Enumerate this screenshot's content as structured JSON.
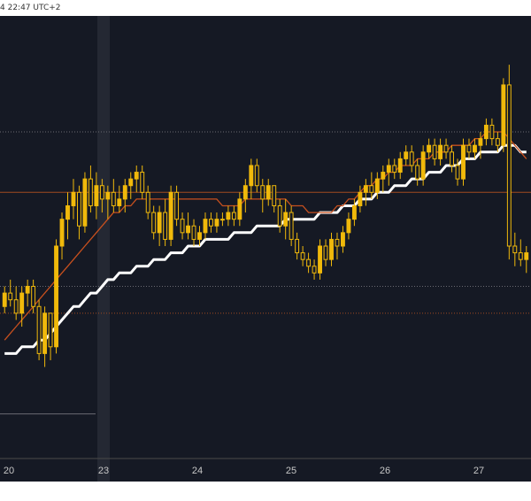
{
  "header": {
    "timestamp": "4 22:47 UTC+2"
  },
  "colors": {
    "background": "#151924",
    "candle": "#f0b90b",
    "ema_fast": "#c8501e",
    "ema_slow": "#ffffff",
    "session_highlight": "#242833",
    "price_line_orange": "#a04a20",
    "price_line_grey": "#6a6a72",
    "axis_text": "#c7c7c7"
  },
  "chart_data": {
    "type": "candlestick",
    "x_tick_labels": [
      "20",
      "23",
      "24",
      "25",
      "26",
      "27"
    ],
    "grid": false,
    "note_scale": "price axis not visible; values in relative units (0 = bottom, 100 = top of plot)",
    "ylim": [
      0,
      100
    ],
    "series": [
      {
        "kind": "candles",
        "ohlc": [
          [
            70,
            73,
            69,
            72
          ],
          [
            72,
            74,
            70,
            71
          ],
          [
            71,
            73,
            68,
            69
          ],
          [
            69,
            73,
            67,
            72
          ],
          [
            72,
            74,
            70,
            73
          ],
          [
            73,
            74,
            69,
            70
          ],
          [
            70,
            71,
            62,
            63
          ],
          [
            63,
            70,
            61,
            69
          ],
          [
            69,
            69,
            62,
            64
          ],
          [
            64,
            80,
            63,
            79
          ],
          [
            79,
            84,
            77,
            83
          ],
          [
            83,
            87,
            80,
            85
          ],
          [
            85,
            89,
            83,
            87
          ],
          [
            87,
            88,
            80,
            82
          ],
          [
            82,
            90,
            81,
            89
          ],
          [
            89,
            91,
            84,
            85
          ],
          [
            85,
            90,
            83,
            88
          ],
          [
            88,
            89,
            84,
            86
          ],
          [
            86,
            88,
            83,
            87
          ],
          [
            87,
            89,
            84,
            85
          ],
          [
            85,
            88,
            84,
            86
          ],
          [
            86,
            89,
            84,
            88
          ],
          [
            88,
            90,
            86,
            89
          ],
          [
            89,
            91,
            87,
            90
          ],
          [
            90,
            91,
            86,
            87
          ],
          [
            87,
            88,
            83,
            84
          ],
          [
            84,
            85,
            80,
            81
          ],
          [
            81,
            85,
            79,
            84
          ],
          [
            84,
            86,
            79,
            80
          ],
          [
            80,
            88,
            79,
            87
          ],
          [
            87,
            88,
            82,
            83
          ],
          [
            83,
            84,
            80,
            81
          ],
          [
            81,
            84,
            80,
            82
          ],
          [
            82,
            83,
            79,
            80
          ],
          [
            80,
            82,
            79,
            81
          ],
          [
            81,
            84,
            80,
            83
          ],
          [
            83,
            84,
            81,
            82
          ],
          [
            82,
            84,
            81,
            83
          ],
          [
            83,
            84,
            82,
            83
          ],
          [
            83,
            85,
            82,
            84
          ],
          [
            84,
            85,
            82,
            83
          ],
          [
            83,
            87,
            82,
            86
          ],
          [
            86,
            89,
            84,
            88
          ],
          [
            88,
            92,
            86,
            91
          ],
          [
            91,
            92,
            87,
            88
          ],
          [
            88,
            89,
            84,
            86
          ],
          [
            86,
            89,
            85,
            88
          ],
          [
            88,
            88,
            84,
            85
          ],
          [
            85,
            86,
            81,
            82
          ],
          [
            82,
            86,
            80,
            84
          ],
          [
            84,
            85,
            79,
            80
          ],
          [
            80,
            81,
            77,
            78
          ],
          [
            78,
            79,
            76,
            77
          ],
          [
            77,
            78,
            75,
            76
          ],
          [
            76,
            77,
            74,
            75
          ],
          [
            75,
            80,
            74,
            79
          ],
          [
            79,
            80,
            76,
            77
          ],
          [
            77,
            81,
            76,
            80
          ],
          [
            80,
            81,
            77,
            79
          ],
          [
            79,
            82,
            78,
            81
          ],
          [
            81,
            84,
            80,
            83
          ],
          [
            83,
            86,
            82,
            85
          ],
          [
            85,
            88,
            84,
            87
          ],
          [
            87,
            89,
            85,
            88
          ],
          [
            88,
            90,
            86,
            87
          ],
          [
            87,
            90,
            86,
            89
          ],
          [
            89,
            91,
            87,
            90
          ],
          [
            90,
            92,
            88,
            91
          ],
          [
            91,
            92,
            89,
            90
          ],
          [
            90,
            93,
            89,
            92
          ],
          [
            92,
            94,
            91,
            93
          ],
          [
            93,
            94,
            90,
            91
          ],
          [
            91,
            92,
            88,
            89
          ],
          [
            89,
            94,
            88,
            93
          ],
          [
            93,
            95,
            92,
            94
          ],
          [
            94,
            95,
            91,
            92
          ],
          [
            92,
            95,
            91,
            94
          ],
          [
            94,
            95,
            92,
            93
          ],
          [
            93,
            94,
            90,
            91
          ],
          [
            91,
            92,
            88,
            89
          ],
          [
            89,
            95,
            88,
            94
          ],
          [
            94,
            95,
            92,
            93
          ],
          [
            93,
            95,
            92,
            94
          ],
          [
            94,
            96,
            92,
            95
          ],
          [
            95,
            98,
            94,
            97
          ],
          [
            97,
            98,
            94,
            95
          ],
          [
            95,
            96,
            93,
            94
          ],
          [
            94,
            104,
            93,
            103
          ],
          [
            103,
            106,
            77,
            79
          ],
          [
            79,
            81,
            76,
            78
          ],
          [
            78,
            80,
            76,
            77
          ],
          [
            77,
            79,
            75,
            78
          ]
        ]
      },
      {
        "kind": "line",
        "role": "ema_fast",
        "values": [
          65,
          66,
          67,
          68,
          69,
          70,
          71,
          72,
          73,
          74,
          75,
          76,
          77,
          78,
          79,
          80,
          81,
          82,
          83,
          84,
          84,
          85,
          85,
          86,
          86,
          86,
          86,
          86,
          86,
          86,
          86,
          86,
          86,
          86,
          86,
          86,
          86,
          86,
          85,
          85,
          85,
          85,
          86,
          86,
          86,
          86,
          86,
          86,
          86,
          86,
          85,
          85,
          85,
          84,
          84,
          84,
          84,
          84,
          85,
          85,
          86,
          86,
          87,
          88,
          88,
          89,
          89,
          90,
          90,
          91,
          91,
          91,
          92,
          92,
          92,
          93,
          93,
          93,
          94,
          94,
          94,
          94,
          95,
          95,
          96,
          96,
          96,
          96,
          95,
          94,
          93,
          92
        ]
      },
      {
        "kind": "line",
        "role": "ema_slow",
        "values": [
          63,
          63,
          63,
          64,
          64,
          64,
          65,
          65,
          66,
          67,
          68,
          69,
          70,
          70,
          71,
          72,
          72,
          73,
          74,
          74,
          75,
          75,
          75,
          76,
          76,
          76,
          77,
          77,
          77,
          78,
          78,
          78,
          79,
          79,
          79,
          80,
          80,
          80,
          80,
          80,
          81,
          81,
          81,
          81,
          82,
          82,
          82,
          82,
          82,
          83,
          83,
          83,
          83,
          83,
          83,
          84,
          84,
          84,
          84,
          85,
          85,
          85,
          86,
          86,
          86,
          87,
          87,
          87,
          88,
          88,
          88,
          89,
          89,
          89,
          90,
          90,
          90,
          91,
          91,
          91,
          92,
          92,
          92,
          93,
          93,
          93,
          93,
          94,
          94,
          94,
          93,
          93
        ]
      }
    ],
    "horizontal_levels": [
      {
        "value": 96,
        "style": "dotted",
        "color": "#6a6a72"
      },
      {
        "value": 87,
        "style": "solid",
        "color": "#a04a20"
      },
      {
        "value": 73,
        "style": "dotted",
        "color": "#6a6a72"
      },
      {
        "value": 69,
        "style": "dotted",
        "color": "#a04a20"
      },
      {
        "value": 54,
        "style": "solid",
        "color": "#6a6a72",
        "segment": "left"
      }
    ]
  }
}
